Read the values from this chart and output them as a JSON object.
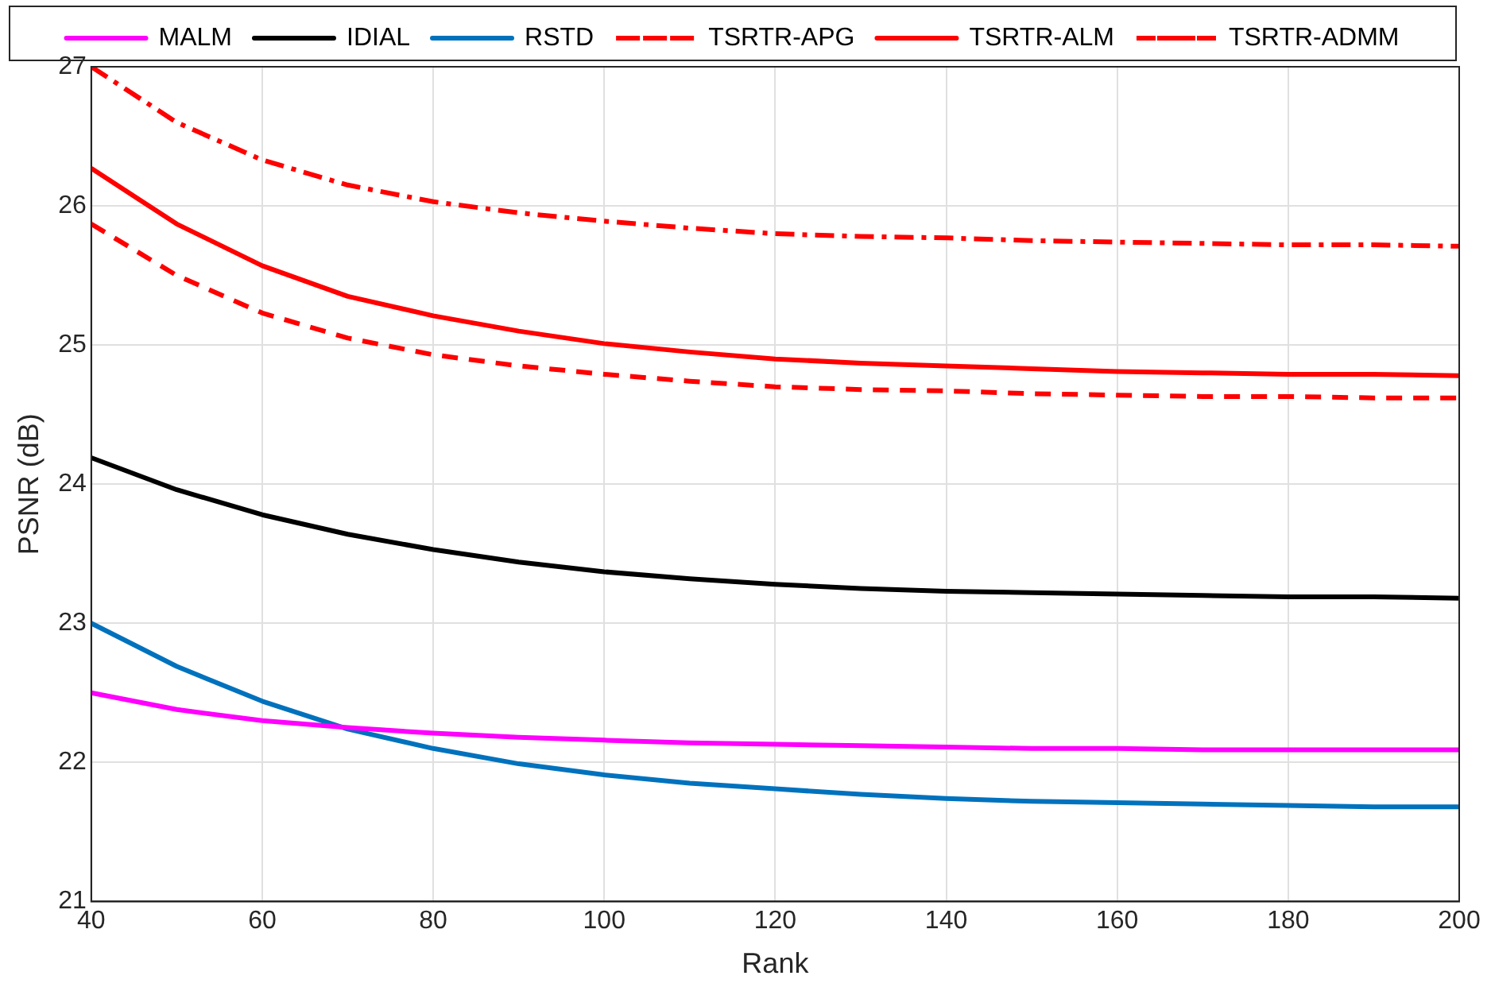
{
  "chart_data": {
    "type": "line",
    "xlabel": "Rank",
    "ylabel": "PSNR (dB)",
    "x": [
      40,
      50,
      60,
      70,
      80,
      90,
      100,
      110,
      120,
      130,
      140,
      150,
      160,
      170,
      180,
      190,
      200
    ],
    "xlim": [
      40,
      200
    ],
    "xticks": [
      40,
      60,
      80,
      100,
      120,
      140,
      160,
      180,
      200
    ],
    "ylim": [
      21,
      27
    ],
    "yticks": [
      21,
      22,
      23,
      24,
      25,
      26,
      27
    ],
    "grid": true,
    "legend": "top",
    "marker": "none",
    "series": [
      {
        "name": "MALM",
        "color": "#ff00ff",
        "line_style": "solid",
        "values": [
          22.5,
          22.38,
          22.3,
          22.25,
          22.21,
          22.18,
          22.16,
          22.14,
          22.13,
          22.12,
          22.11,
          22.1,
          22.1,
          22.09,
          22.09,
          22.09,
          22.09
        ]
      },
      {
        "name": "IDIAL",
        "color": "#000000",
        "line_style": "solid",
        "values": [
          24.19,
          23.96,
          23.78,
          23.64,
          23.53,
          23.44,
          23.37,
          23.32,
          23.28,
          23.25,
          23.23,
          23.22,
          23.21,
          23.2,
          23.19,
          23.19,
          23.18
        ]
      },
      {
        "name": "RSTD",
        "color": "#0072bd",
        "line_style": "solid",
        "values": [
          23.0,
          22.69,
          22.44,
          22.24,
          22.1,
          21.99,
          21.91,
          21.85,
          21.81,
          21.77,
          21.74,
          21.72,
          21.71,
          21.7,
          21.69,
          21.68,
          21.68
        ]
      },
      {
        "name": "TSRTR-APG",
        "color": "#ff0000",
        "line_style": "dashed",
        "values": [
          25.87,
          25.5,
          25.23,
          25.05,
          24.93,
          24.85,
          24.79,
          24.74,
          24.7,
          24.68,
          24.67,
          24.65,
          24.64,
          24.63,
          24.63,
          24.62,
          24.62
        ]
      },
      {
        "name": "TSRTR-ALM",
        "color": "#ff0000",
        "line_style": "solid",
        "values": [
          26.27,
          25.87,
          25.57,
          25.35,
          25.21,
          25.1,
          25.01,
          24.95,
          24.9,
          24.87,
          24.85,
          24.83,
          24.81,
          24.8,
          24.79,
          24.79,
          24.78
        ]
      },
      {
        "name": "TSRTR-ADMM",
        "color": "#ff0000",
        "line_style": "dashdot",
        "values": [
          27.0,
          26.6,
          26.33,
          26.15,
          26.03,
          25.95,
          25.89,
          25.84,
          25.8,
          25.78,
          25.77,
          25.75,
          25.74,
          25.73,
          25.72,
          25.72,
          25.71
        ]
      }
    ]
  }
}
